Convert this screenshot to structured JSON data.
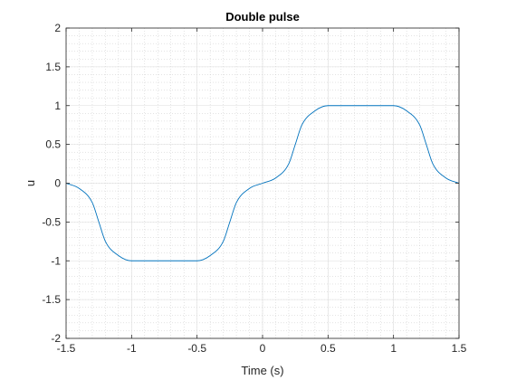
{
  "chart_data": {
    "type": "line",
    "title": "Double pulse",
    "xlabel": "Time (s)",
    "ylabel": "u",
    "xlim": [
      -1.5,
      1.5
    ],
    "ylim": [
      -2,
      2
    ],
    "xticks": [
      -1.5,
      -1,
      -0.5,
      0,
      0.5,
      1,
      1.5
    ],
    "xtick_labels": [
      "-1.5",
      "-1",
      "-0.5",
      "0",
      "0.5",
      "1",
      "1.5"
    ],
    "yticks": [
      -2,
      -1.5,
      -1,
      -0.5,
      0,
      0.5,
      1,
      1.5,
      2
    ],
    "ytick_labels": [
      "-2",
      "-1.5",
      "-1",
      "-0.5",
      "0",
      "0.5",
      "1",
      "1.5",
      "2"
    ],
    "grid": true,
    "minor_grid": true,
    "series": [
      {
        "color": "#0072bd",
        "x": [
          -1.5,
          -1.4,
          -1.3,
          -1.25,
          -1.2,
          -1.1,
          -1.0,
          -0.9,
          -0.8,
          -0.7,
          -0.6,
          -0.5,
          -0.4,
          -0.3,
          -0.25,
          -0.2,
          -0.1,
          0.0,
          0.1,
          0.2,
          0.25,
          0.3,
          0.4,
          0.5,
          0.6,
          0.7,
          0.8,
          0.9,
          1.0,
          1.1,
          1.2,
          1.25,
          1.3,
          1.4,
          1.5
        ],
        "y": [
          0,
          -0.067,
          -0.25,
          -0.5,
          -0.75,
          -0.933,
          -1.0,
          -1.0,
          -1.0,
          -1.0,
          -1.0,
          -1.0,
          -0.933,
          -0.75,
          -0.5,
          -0.25,
          -0.067,
          0,
          0.067,
          0.25,
          0.5,
          0.75,
          0.933,
          1.0,
          1.0,
          1.0,
          1.0,
          1.0,
          1.0,
          0.933,
          0.75,
          0.5,
          0.25,
          0.067,
          0
        ]
      }
    ]
  }
}
